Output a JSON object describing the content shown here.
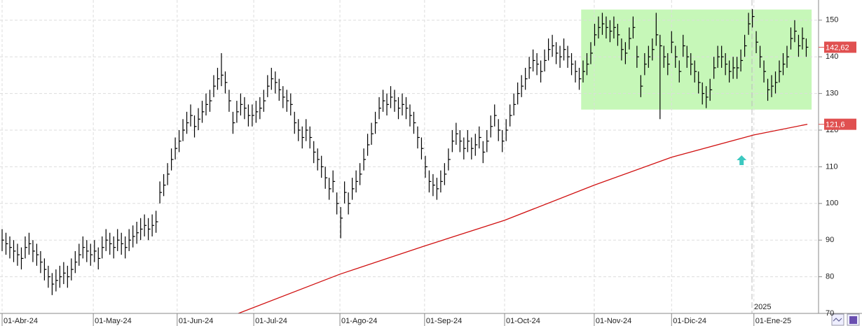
{
  "chart_data": {
    "type": "ohlc",
    "color": "#000000",
    "xlim": [
      -0.55,
      212.2
    ],
    "ylim": [
      70,
      155.5
    ],
    "yticks": [
      70,
      80,
      90,
      100,
      110,
      120,
      130,
      140,
      150
    ],
    "xticks": [
      {
        "value": 0,
        "label": "01-Abr-24"
      },
      {
        "value": 23.7,
        "label": "01-May-24"
      },
      {
        "value": 45.5,
        "label": "01-Jun-24"
      },
      {
        "value": 65.4,
        "label": "01-Jul-24"
      },
      {
        "value": 87.8,
        "label": "01-Ago-24"
      },
      {
        "value": 109.8,
        "label": "01-Sep-24"
      },
      {
        "value": 130.6,
        "label": "01-Oct-24"
      },
      {
        "value": 153.9,
        "label": "01-Nov-24"
      },
      {
        "value": 174,
        "label": "01-Dic-24"
      },
      {
        "value": 195.4,
        "label": "01-Ene-25"
      }
    ],
    "grid": true,
    "close": [
      90,
      89,
      88,
      87,
      86,
      85,
      88,
      89,
      87,
      86,
      84,
      82,
      80,
      78,
      79,
      80,
      81,
      80,
      82,
      84,
      86,
      88,
      87,
      86,
      87,
      85,
      88,
      90,
      89,
      88,
      90,
      89,
      88,
      90,
      91,
      92,
      93,
      94,
      93,
      94,
      95,
      103,
      105,
      108,
      112,
      115,
      117,
      120,
      122,
      124,
      121,
      123,
      125,
      127,
      128,
      132,
      134,
      135,
      133,
      128,
      122,
      125,
      127,
      126,
      124,
      124,
      125,
      126,
      128,
      132,
      134,
      133,
      131,
      129,
      128,
      127,
      122,
      120,
      118,
      120,
      118,
      114,
      112,
      110,
      107,
      104,
      106,
      100,
      96,
      103,
      100,
      104,
      106,
      108,
      112,
      116,
      119,
      122,
      126,
      128,
      127,
      129,
      128,
      126,
      127,
      126,
      124,
      122,
      118,
      115,
      110,
      106,
      105,
      104,
      106,
      108,
      112,
      117,
      119,
      117,
      115,
      117,
      115,
      116,
      118,
      114,
      117,
      121,
      124,
      120,
      117,
      120,
      124,
      127,
      130,
      132,
      134,
      137,
      139,
      138,
      136,
      139,
      142,
      143,
      141,
      140,
      142,
      140,
      138,
      136,
      134,
      136,
      138,
      141,
      146,
      148,
      149,
      148,
      147,
      148,
      146,
      142,
      141,
      145,
      148,
      140,
      132,
      138,
      140,
      142,
      146,
      143,
      140,
      138,
      144,
      140,
      136,
      143,
      140,
      138,
      136,
      133,
      130,
      129,
      131,
      137,
      140,
      140,
      138,
      136,
      137,
      137,
      139,
      143,
      149,
      151,
      144,
      140,
      136,
      131,
      132,
      133,
      136,
      138,
      140,
      145,
      147,
      143,
      145,
      142.62
    ],
    "high": [
      93,
      92,
      91,
      90,
      89,
      88,
      91,
      92,
      90,
      89,
      87,
      85,
      83,
      81,
      82,
      83,
      84,
      83,
      85,
      87,
      89,
      91,
      90,
      89,
      90,
      88,
      91,
      93,
      92,
      91,
      93,
      92,
      91,
      93,
      94,
      95,
      96,
      97,
      96,
      97,
      98,
      106,
      108,
      111,
      115,
      118,
      120,
      123,
      125,
      127,
      124,
      126,
      128,
      130,
      131,
      135,
      137,
      141,
      136,
      131,
      125,
      128,
      130,
      129,
      127,
      127,
      128,
      129,
      131,
      135,
      137,
      136,
      134,
      132,
      131,
      130,
      125,
      123,
      121,
      123,
      121,
      117,
      115,
      113,
      110,
      107,
      109,
      103,
      99,
      106,
      103,
      107,
      109,
      111,
      115,
      119,
      122,
      125,
      129,
      131,
      130,
      132,
      131,
      129,
      130,
      129,
      127,
      125,
      121,
      118,
      113,
      109,
      108,
      107,
      109,
      111,
      115,
      120,
      122,
      120,
      118,
      120,
      118,
      119,
      121,
      117,
      120,
      124,
      127,
      123,
      120,
      123,
      127,
      130,
      133,
      135,
      137,
      140,
      142,
      141,
      139,
      142,
      145,
      146,
      144,
      143,
      145,
      143,
      141,
      139,
      137,
      139,
      141,
      144,
      149,
      151,
      152,
      151,
      150,
      151,
      149,
      145,
      144,
      148,
      151,
      143,
      135,
      141,
      143,
      145,
      152,
      146,
      143,
      141,
      147,
      143,
      139,
      146,
      143,
      141,
      139,
      136,
      133,
      132,
      134,
      140,
      143,
      143,
      141,
      139,
      140,
      140,
      142,
      146,
      152,
      153,
      147,
      143,
      139,
      134,
      135,
      136,
      139,
      141,
      143,
      148,
      150,
      146,
      148,
      145
    ],
    "low": [
      87,
      86,
      85,
      84,
      83,
      82,
      85,
      86,
      84,
      83,
      81,
      79,
      77,
      75,
      76,
      77,
      78,
      77,
      79,
      81,
      83,
      85,
      84,
      83,
      84,
      82,
      85,
      87,
      86,
      85,
      87,
      86,
      85,
      87,
      88,
      89,
      90,
      91,
      90,
      91,
      92,
      100,
      102,
      105,
      109,
      112,
      114,
      117,
      119,
      121,
      118,
      120,
      122,
      124,
      125,
      129,
      131,
      132,
      130,
      125,
      119,
      122,
      124,
      123,
      121,
      121,
      122,
      123,
      125,
      129,
      131,
      130,
      128,
      126,
      125,
      124,
      119,
      117,
      115,
      117,
      115,
      111,
      109,
      107,
      104,
      101,
      103,
      97,
      90.5,
      100,
      97,
      101,
      103,
      105,
      109,
      113,
      116,
      119,
      123,
      125,
      124,
      126,
      125,
      123,
      124,
      123,
      121,
      119,
      115,
      112,
      107,
      103,
      102,
      101,
      103,
      105,
      109,
      114,
      116,
      114,
      112,
      114,
      112,
      113,
      115,
      111,
      114,
      118,
      121,
      117,
      114,
      117,
      121,
      124,
      127,
      129,
      131,
      134,
      136,
      135,
      133,
      136,
      139,
      140,
      138,
      137,
      139,
      137,
      135,
      133,
      131,
      133,
      135,
      138,
      143,
      145,
      146,
      145,
      144,
      145,
      143,
      139,
      138,
      142,
      145,
      137,
      129,
      135,
      137,
      139,
      143,
      123,
      137,
      135,
      141,
      137,
      133,
      140,
      137,
      135,
      133,
      130,
      127,
      126,
      128,
      134,
      137,
      137,
      135,
      133,
      134,
      134,
      136,
      140,
      146,
      148,
      141,
      137,
      133,
      128,
      129,
      130,
      133,
      135,
      137,
      142,
      144,
      140,
      142,
      140
    ],
    "moving_average": {
      "color": "#d01010",
      "x": [
        61.4,
        87.8,
        109.8,
        130.6,
        153.9,
        174,
        195.4,
        209.3
      ],
      "values": [
        70,
        80.7,
        88.4,
        95.4,
        105,
        112.6,
        118.7,
        121.6
      ]
    },
    "last_price": {
      "value": 142.62,
      "label": "142,62"
    },
    "ma_last": {
      "value": 121.6,
      "label": "121,6"
    },
    "highlight": {
      "x": [
        150.5,
        210.4
      ],
      "y": [
        125.6,
        152.9
      ],
      "color": "#c6f7b8"
    },
    "year_marker": {
      "value": 194.9,
      "label": "2025"
    },
    "arrow": {
      "x": 192.2,
      "y": 111.6,
      "color": "#3cc8c0"
    }
  }
}
